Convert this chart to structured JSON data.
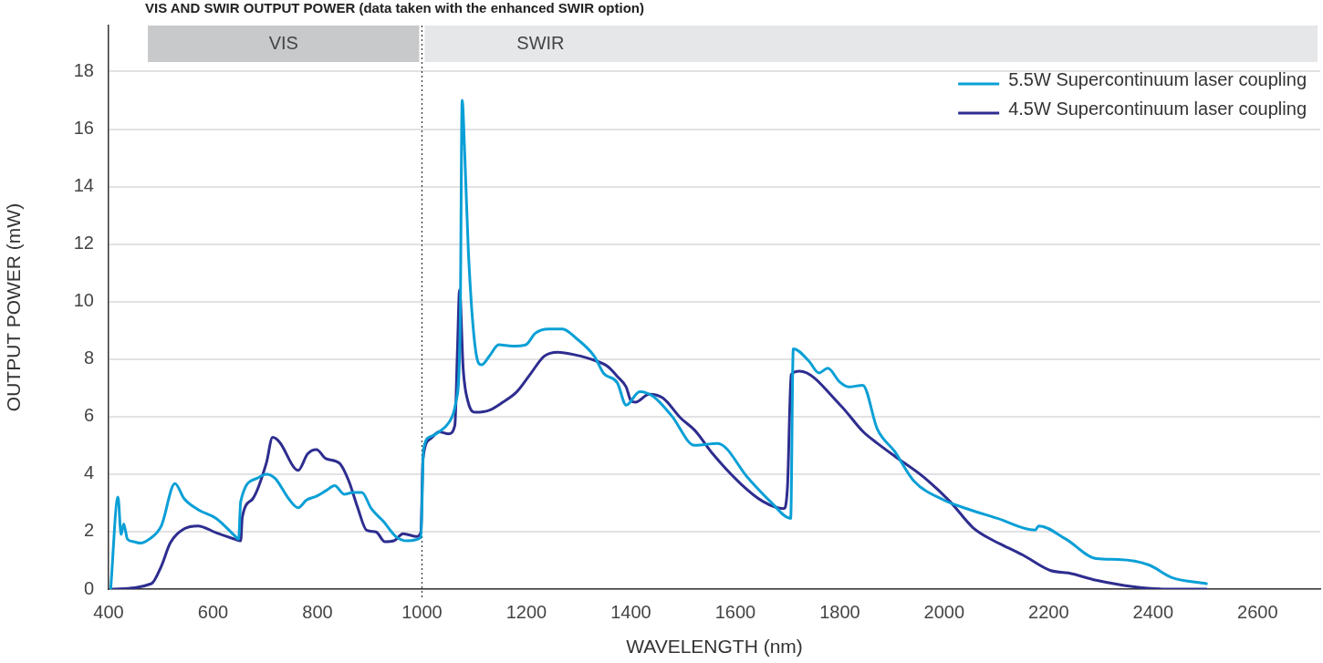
{
  "chart_data": {
    "type": "line",
    "title": "VIS AND SWIR OUTPUT POWER (data taken with the enhanced SWIR option)",
    "xlabel": "WAVELENGTH (nm)",
    "ylabel": "OUTPUT POWER (mW)",
    "xlim": [
      400,
      2720
    ],
    "xticks": [
      400,
      600,
      800,
      1000,
      1200,
      1400,
      1600,
      1800,
      2000,
      2200,
      2400,
      2600
    ],
    "ylim": [
      0,
      19.6
    ],
    "yticks": [
      0,
      2,
      4,
      6,
      8,
      10,
      12,
      14,
      16,
      18
    ],
    "grid": "y",
    "legend": "top right",
    "marker": "none",
    "line_style": "solid",
    "bands": [
      {
        "axis": "x",
        "from": 470,
        "to": 1000,
        "label": "VIS",
        "color": "#c8c9cb"
      },
      {
        "axis": "x",
        "from": 1000,
        "to": 2720,
        "label": "SWIR",
        "color": "#e6e7e9"
      }
    ],
    "ref_lines": [
      {
        "axis": "x",
        "value": 1000,
        "label": null,
        "color": "#333333",
        "line_style": "dotted"
      }
    ],
    "series": [
      {
        "name": "5.5W Supercontinuum laser coupling",
        "color": "#0a9fd6",
        "x": [
          404,
          418,
          424,
          429,
          436,
          448,
          461,
          478,
          501,
          527,
          545,
          571,
          606,
          641,
          649,
          653,
          684,
          702,
          719,
          745,
          763,
          779,
          798,
          816,
          833,
          851,
          868,
          885,
          903,
          926,
          950,
          972,
          998,
          1003,
          1016,
          1033,
          1051,
          1065,
          1073,
          1077,
          1082,
          1089,
          1103,
          1114,
          1129,
          1147,
          1173,
          1199,
          1217,
          1243,
          1269,
          1295,
          1330,
          1348,
          1374,
          1391,
          1417,
          1443,
          1478,
          1522,
          1566,
          1625,
          1667,
          1706,
          1711,
          1741,
          1760,
          1777,
          1800,
          1817,
          1844,
          1872,
          1905,
          1942,
          1999,
          2043,
          2102,
          2174,
          2181,
          2233,
          2291,
          2334,
          2392,
          2436,
          2502
        ],
        "values": [
          0,
          3.2,
          1.9,
          2.27,
          1.74,
          1.65,
          1.6,
          1.74,
          2.2,
          3.67,
          3.14,
          2.77,
          2.46,
          1.87,
          1.74,
          3.05,
          3.85,
          4.0,
          3.85,
          3.14,
          2.83,
          3.1,
          3.23,
          3.42,
          3.6,
          3.3,
          3.36,
          3.36,
          2.8,
          2.36,
          1.83,
          1.68,
          1.8,
          4.85,
          5.3,
          5.47,
          5.78,
          6.5,
          8.9,
          17.0,
          15.1,
          11.7,
          8.27,
          7.8,
          8.1,
          8.5,
          8.45,
          8.5,
          8.9,
          9.05,
          9.05,
          8.73,
          8.1,
          7.5,
          7.18,
          6.4,
          6.87,
          6.7,
          6.03,
          5.0,
          5.07,
          3.85,
          3.05,
          2.46,
          8.36,
          7.93,
          7.52,
          7.68,
          7.2,
          7.03,
          7.09,
          5.56,
          4.79,
          3.76,
          3.1,
          2.8,
          2.46,
          2.05,
          2.2,
          1.74,
          1.06,
          1.03,
          0.84,
          0.4,
          0.19
        ]
      },
      {
        "name": "4.5W Supercontinuum laser coupling",
        "color": "#2e2d8f",
        "x": [
          404,
          482,
          501,
          518,
          545,
          571,
          606,
          641,
          653,
          656,
          676,
          702,
          714,
          728,
          755,
          763,
          781,
          798,
          816,
          842,
          860,
          877,
          894,
          912,
          929,
          946,
          964,
          990,
          998,
          1002,
          1016,
          1033,
          1051,
          1063,
          1068,
          1072,
          1079,
          1089,
          1103,
          1129,
          1155,
          1182,
          1208,
          1234,
          1260,
          1295,
          1330,
          1356,
          1374,
          1391,
          1400,
          1409,
          1435,
          1461,
          1496,
          1522,
          1557,
          1610,
          1653,
          1693,
          1700,
          1707,
          1723,
          1801,
          1845,
          1872,
          1907,
          1959,
          2011,
          2055,
          2095,
          2113,
          2151,
          2203,
          2238,
          2291,
          2361,
          2430,
          2502
        ],
        "values": [
          0,
          0.19,
          0.8,
          1.6,
          2.1,
          2.2,
          1.96,
          1.74,
          1.68,
          2.5,
          3.14,
          4.38,
          5.28,
          5.1,
          4.23,
          4.13,
          4.7,
          4.85,
          4.54,
          4.38,
          3.76,
          2.83,
          2.05,
          1.99,
          1.65,
          1.68,
          1.93,
          1.83,
          1.99,
          4.54,
          5.22,
          5.47,
          5.4,
          5.7,
          8.33,
          10.4,
          7.65,
          6.47,
          6.15,
          6.22,
          6.5,
          6.87,
          7.49,
          8.1,
          8.24,
          8.14,
          7.96,
          7.74,
          7.4,
          7.03,
          6.56,
          6.5,
          6.78,
          6.65,
          5.94,
          5.53,
          4.7,
          3.67,
          3.05,
          2.8,
          3.6,
          7.46,
          7.58,
          6.4,
          5.47,
          5.07,
          4.6,
          3.92,
          3.05,
          2.14,
          1.68,
          1.52,
          1.18,
          0.65,
          0.56,
          0.31,
          0.09,
          0,
          0
        ]
      }
    ]
  }
}
